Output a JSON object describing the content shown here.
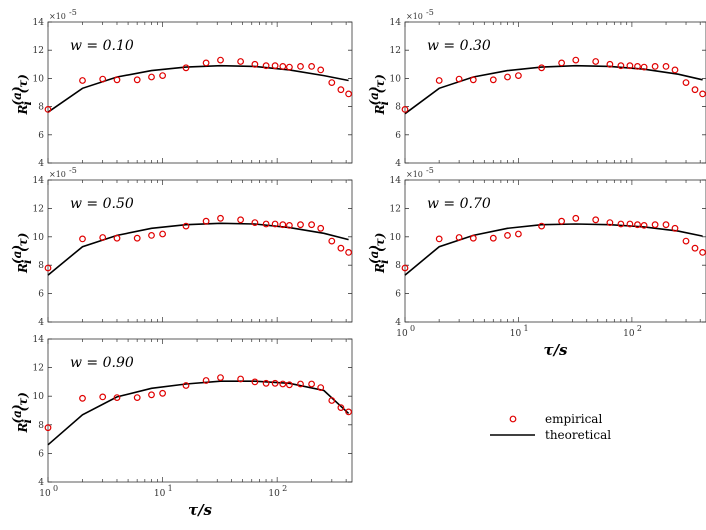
{
  "colors": {
    "empirical": "#e00000",
    "theoretical": "#000000",
    "axis": "#333333"
  },
  "chart_data": [
    {
      "type": "scatter+line",
      "title": "w = 0.10",
      "xlabel": "",
      "ylabel": "R_i^(a)(τ)",
      "ylabel_main": "R",
      "ylabel_sub": "i",
      "ylabel_sup": "(a)",
      "ylabel_arg": "(τ)",
      "exponent_label": "×10",
      "exponent_power": "-5",
      "xscale": "log",
      "xlim": [
        1,
        450
      ],
      "ylim": [
        4,
        14
      ],
      "yticks": [
        "4",
        "6",
        "8",
        "10",
        "12",
        "14"
      ],
      "xticks": [],
      "series": [
        {
          "name": "empirical",
          "x": [
            1,
            2,
            3,
            4,
            6,
            8,
            10,
            16,
            24,
            32,
            48,
            64,
            80,
            96,
            112,
            128,
            160,
            200,
            240,
            300,
            360,
            420
          ],
          "y": [
            7.8,
            9.85,
            9.95,
            9.9,
            9.9,
            10.1,
            10.2,
            10.75,
            11.1,
            11.3,
            11.2,
            11.0,
            10.9,
            10.9,
            10.85,
            10.8,
            10.85,
            10.85,
            10.6,
            9.7,
            9.2,
            8.9
          ]
        },
        {
          "name": "theoretical",
          "x": [
            1,
            2,
            4,
            8,
            16,
            32,
            64,
            128,
            256,
            420
          ],
          "y": [
            7.6,
            9.3,
            10.1,
            10.55,
            10.8,
            10.9,
            10.85,
            10.6,
            10.2,
            9.85
          ]
        }
      ]
    },
    {
      "type": "scatter+line",
      "title": "w = 0.30",
      "xlabel": "",
      "ylabel": "R_i^(a)(τ)",
      "ylabel_main": "R",
      "ylabel_sub": "i",
      "ylabel_sup": "(a)",
      "ylabel_arg": "(τ)",
      "exponent_label": "×10",
      "exponent_power": "-5",
      "xscale": "log",
      "xlim": [
        1,
        450
      ],
      "ylim": [
        4,
        14
      ],
      "yticks": [
        "4",
        "6",
        "8",
        "10",
        "12",
        "14"
      ],
      "xticks": [],
      "series": [
        {
          "name": "empirical",
          "x": [
            1,
            2,
            3,
            4,
            6,
            8,
            10,
            16,
            24,
            32,
            48,
            64,
            80,
            96,
            112,
            128,
            160,
            200,
            240,
            300,
            360,
            420
          ],
          "y": [
            7.8,
            9.85,
            9.95,
            9.9,
            9.9,
            10.1,
            10.2,
            10.75,
            11.1,
            11.3,
            11.2,
            11.0,
            10.9,
            10.9,
            10.85,
            10.8,
            10.85,
            10.85,
            10.6,
            9.7,
            9.2,
            8.9
          ]
        },
        {
          "name": "theoretical",
          "x": [
            1,
            2,
            4,
            8,
            16,
            32,
            64,
            128,
            256,
            420
          ],
          "y": [
            7.5,
            9.3,
            10.1,
            10.55,
            10.8,
            10.9,
            10.85,
            10.65,
            10.3,
            9.9
          ]
        }
      ]
    },
    {
      "type": "scatter+line",
      "title": "w = 0.50",
      "xlabel": "",
      "ylabel": "R_i^(a)(τ)",
      "ylabel_main": "R",
      "ylabel_sub": "i",
      "ylabel_sup": "(a)",
      "ylabel_arg": "(τ)",
      "exponent_label": "×10",
      "exponent_power": "-5",
      "xscale": "log",
      "xlim": [
        1,
        450
      ],
      "ylim": [
        4,
        14
      ],
      "yticks": [
        "4",
        "6",
        "8",
        "10",
        "12",
        "14"
      ],
      "xticks": [],
      "series": [
        {
          "name": "empirical",
          "x": [
            1,
            2,
            3,
            4,
            6,
            8,
            10,
            16,
            24,
            32,
            48,
            64,
            80,
            96,
            112,
            128,
            160,
            200,
            240,
            300,
            360,
            420
          ],
          "y": [
            7.8,
            9.85,
            9.95,
            9.9,
            9.9,
            10.1,
            10.2,
            10.75,
            11.1,
            11.3,
            11.2,
            11.0,
            10.9,
            10.9,
            10.85,
            10.8,
            10.85,
            10.85,
            10.6,
            9.7,
            9.2,
            8.9
          ]
        },
        {
          "name": "theoretical",
          "x": [
            1,
            2,
            4,
            8,
            16,
            32,
            64,
            128,
            256,
            420
          ],
          "y": [
            7.3,
            9.3,
            10.1,
            10.6,
            10.85,
            10.95,
            10.9,
            10.65,
            10.25,
            9.8
          ]
        }
      ]
    },
    {
      "type": "scatter+line",
      "title": "w = 0.70",
      "xlabel": "τ/s",
      "ylabel": "R_i^(a)(τ)",
      "ylabel_main": "R",
      "ylabel_sub": "i",
      "ylabel_sup": "(a)",
      "ylabel_arg": "(τ)",
      "exponent_label": "×10",
      "exponent_power": "-5",
      "xscale": "log",
      "xlim": [
        1,
        450
      ],
      "ylim": [
        4,
        14
      ],
      "yticks": [
        "4",
        "6",
        "8",
        "10",
        "12",
        "14"
      ],
      "xticks": [
        "10",
        "10",
        "10"
      ],
      "xtick_powers": [
        "0",
        "1",
        "2"
      ],
      "series": [
        {
          "name": "empirical",
          "x": [
            1,
            2,
            3,
            4,
            6,
            8,
            10,
            16,
            24,
            32,
            48,
            64,
            80,
            96,
            112,
            128,
            160,
            200,
            240,
            300,
            360,
            420
          ],
          "y": [
            7.8,
            9.85,
            9.95,
            9.9,
            9.9,
            10.1,
            10.2,
            10.75,
            11.1,
            11.3,
            11.2,
            11.0,
            10.9,
            10.9,
            10.85,
            10.8,
            10.85,
            10.85,
            10.6,
            9.7,
            9.2,
            8.9
          ]
        },
        {
          "name": "theoretical",
          "x": [
            1,
            2,
            4,
            8,
            16,
            32,
            64,
            128,
            256,
            420
          ],
          "y": [
            7.3,
            9.3,
            10.1,
            10.6,
            10.85,
            10.9,
            10.85,
            10.7,
            10.4,
            10.05
          ]
        }
      ]
    },
    {
      "type": "scatter+line",
      "title": "w = 0.90",
      "xlabel": "τ/s",
      "ylabel": "R_i^(a)(τ)",
      "ylabel_main": "R",
      "ylabel_sub": "i",
      "ylabel_sup": "(a)",
      "ylabel_arg": "(τ)",
      "exponent_label": "",
      "exponent_power": "",
      "xscale": "log",
      "xlim": [
        1,
        450
      ],
      "ylim": [
        4,
        14
      ],
      "yticks": [
        "4",
        "6",
        "8",
        "10",
        "12",
        "14"
      ],
      "xticks": [
        "10",
        "10",
        "10"
      ],
      "xtick_powers": [
        "0",
        "1",
        "2"
      ],
      "series": [
        {
          "name": "empirical",
          "x": [
            1,
            2,
            3,
            4,
            6,
            8,
            10,
            16,
            24,
            32,
            48,
            64,
            80,
            96,
            112,
            128,
            160,
            200,
            240,
            300,
            360,
            420
          ],
          "y": [
            7.8,
            9.85,
            9.95,
            9.9,
            9.9,
            10.1,
            10.2,
            10.75,
            11.1,
            11.3,
            11.2,
            11.0,
            10.9,
            10.9,
            10.85,
            10.8,
            10.85,
            10.85,
            10.6,
            9.7,
            9.2,
            8.9
          ]
        },
        {
          "name": "theoretical",
          "x": [
            1,
            2,
            4,
            8,
            16,
            32,
            64,
            128,
            256,
            420
          ],
          "y": [
            6.6,
            8.7,
            9.95,
            10.55,
            10.85,
            11.05,
            11.05,
            10.9,
            10.4,
            8.8
          ]
        }
      ]
    }
  ],
  "legend": {
    "items": [
      {
        "label": "empirical",
        "kind": "marker"
      },
      {
        "label": "theoretical",
        "kind": "line"
      }
    ]
  }
}
